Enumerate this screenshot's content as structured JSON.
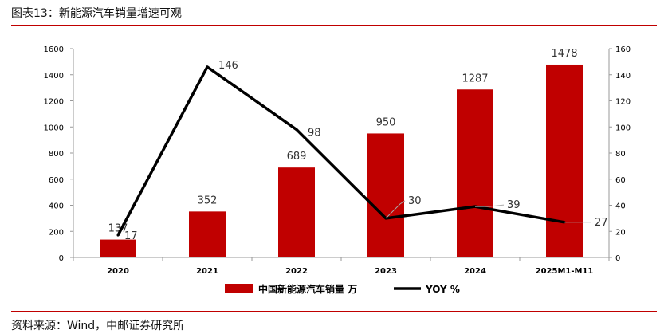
{
  "title": "图表13：新能源汽车销量增速可观",
  "source": "资料来源：Wind，中邮证券研究所",
  "colors": {
    "bar": "#c00000",
    "line": "#000000",
    "accent_rule": "#c00000"
  },
  "chart_data": {
    "type": "bar+line",
    "categories": [
      "2020",
      "2021",
      "2022",
      "2023",
      "2024",
      "2025M1-M11"
    ],
    "series": [
      {
        "name": "中国新能源汽车销量 万",
        "type": "bar",
        "axis": "left",
        "values": [
          137,
          352,
          689,
          950,
          1287,
          1478
        ],
        "labels": [
          "137",
          "352",
          "689",
          "950",
          "1287",
          "1478"
        ]
      },
      {
        "name": "YOY %",
        "type": "line",
        "axis": "right",
        "values": [
          17,
          146,
          98,
          30,
          39,
          27
        ],
        "labels": [
          "17",
          "146",
          "98",
          "30",
          "39",
          "27"
        ]
      }
    ],
    "left_axis": {
      "min": 0,
      "max": 1600,
      "ticks": [
        "0",
        "200",
        "400",
        "600",
        "800",
        "1000",
        "1200",
        "1400",
        "1600"
      ]
    },
    "right_axis": {
      "min": 0,
      "max": 160,
      "ticks": [
        "0",
        "20",
        "40",
        "60",
        "80",
        "100",
        "120",
        "140",
        "160"
      ]
    },
    "legend": {
      "position": "bottom"
    },
    "grid": false
  }
}
